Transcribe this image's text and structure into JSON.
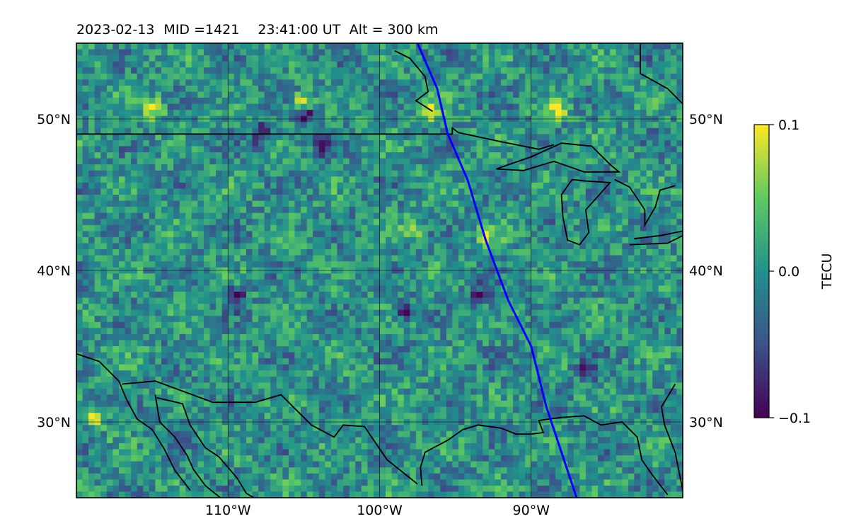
{
  "title": {
    "date": "2023-02-13",
    "mid": "MID =1421",
    "time": "23:41:00  UT",
    "alt": "Alt = 300 km"
  },
  "map": {
    "lon_range": [
      -120,
      -80
    ],
    "lat_range": [
      25,
      55
    ],
    "grid_lons": [
      -110,
      -100,
      -90
    ],
    "grid_lats": [
      30,
      40,
      50
    ],
    "lon_labels": [
      "110°W",
      "100°W",
      "90°W"
    ],
    "lat_labels": [
      "30°N",
      "40°N",
      "50°N"
    ],
    "colormap": "viridis",
    "track_color": "#0000ff",
    "track": [
      [
        -97.5,
        55
      ],
      [
        -96.2,
        52
      ],
      [
        -95.5,
        49
      ],
      [
        -94.2,
        46
      ],
      [
        -93,
        42
      ],
      [
        -91.5,
        38
      ],
      [
        -90,
        35
      ],
      [
        -89,
        31
      ],
      [
        -87,
        25
      ]
    ],
    "coastlines": {
      "canada_us_border": [
        [
          -120,
          49
        ],
        [
          -95.2,
          49
        ],
        [
          -95.2,
          49.4
        ],
        [
          -94.8,
          49.1
        ],
        [
          -92,
          48.5
        ],
        [
          -89.5,
          48
        ],
        [
          -88.5,
          48.3
        ]
      ],
      "lake_superior": [
        [
          -92.3,
          46.7
        ],
        [
          -90,
          47.5
        ],
        [
          -88,
          48.4
        ],
        [
          -86,
          48.2
        ],
        [
          -84.8,
          47
        ],
        [
          -84.2,
          46.5
        ],
        [
          -86.5,
          46.5
        ],
        [
          -88.5,
          47.2
        ],
        [
          -90.5,
          46.6
        ],
        [
          -92.3,
          46.7
        ]
      ],
      "lake_michigan": [
        [
          -87.3,
          46
        ],
        [
          -88,
          45
        ],
        [
          -87.9,
          43.5
        ],
        [
          -87.6,
          42
        ],
        [
          -86.8,
          41.7
        ],
        [
          -86.2,
          42.5
        ],
        [
          -86.4,
          44
        ],
        [
          -85.5,
          45
        ],
        [
          -84.8,
          45.8
        ],
        [
          -86.4,
          45.9
        ],
        [
          -87.3,
          46
        ]
      ],
      "lake_huron": [
        [
          -84.5,
          46
        ],
        [
          -83.5,
          45.5
        ],
        [
          -82.5,
          44
        ],
        [
          -82.5,
          43
        ],
        [
          -81.8,
          44.2
        ],
        [
          -81.5,
          45.3
        ],
        [
          -80.5,
          45.6
        ]
      ],
      "lake_erie": [
        [
          -83.5,
          41.7
        ],
        [
          -81,
          41.8
        ],
        [
          -79,
          42.8
        ],
        [
          -81.5,
          42.3
        ],
        [
          -83.2,
          42.1
        ]
      ],
      "gulf_coast": [
        [
          -97.2,
          25.8
        ],
        [
          -97.3,
          27
        ],
        [
          -97.0,
          28
        ],
        [
          -95.5,
          28.8
        ],
        [
          -94.5,
          29.5
        ],
        [
          -93.5,
          29.8
        ],
        [
          -92,
          29.6
        ],
        [
          -91,
          29.2
        ],
        [
          -90,
          29.2
        ],
        [
          -89.2,
          29.3
        ],
        [
          -89.5,
          30.1
        ],
        [
          -88,
          30.3
        ],
        [
          -86.5,
          30.4
        ],
        [
          -85.4,
          29.8
        ],
        [
          -84,
          30
        ],
        [
          -83,
          29
        ],
        [
          -82.7,
          27.5
        ],
        [
          -82,
          26.5
        ],
        [
          -81,
          25.2
        ]
      ],
      "atlantic_fl": [
        [
          -80,
          25.5
        ],
        [
          -80.5,
          28
        ],
        [
          -81.2,
          29.8
        ],
        [
          -81.4,
          31
        ],
        [
          -80.5,
          32.5
        ]
      ],
      "us_mexico_border": [
        [
          -117,
          32.5
        ],
        [
          -114.8,
          32.7
        ],
        [
          -111,
          31.3
        ],
        [
          -108.2,
          31.3
        ],
        [
          -106.5,
          31.8
        ],
        [
          -104.5,
          29.8
        ],
        [
          -103,
          29
        ],
        [
          -102.4,
          29.8
        ],
        [
          -101,
          29.7
        ],
        [
          -99.5,
          27.5
        ],
        [
          -97.5,
          25.9
        ]
      ],
      "baja_east": [
        [
          -114.8,
          31.8
        ],
        [
          -114.5,
          30
        ],
        [
          -113.5,
          29
        ],
        [
          -112.7,
          27.8
        ],
        [
          -112.3,
          26.9
        ],
        [
          -111.5,
          25.8
        ],
        [
          -110.5,
          25
        ]
      ],
      "mexico_mainland": [
        [
          -114.7,
          31.6
        ],
        [
          -113,
          31.2
        ],
        [
          -112.5,
          29.8
        ],
        [
          -111.5,
          28.3
        ],
        [
          -110.6,
          27.7
        ],
        [
          -109.4,
          26.3
        ],
        [
          -108.8,
          25.3
        ],
        [
          -108.3,
          25
        ]
      ],
      "pacific_coast": [
        [
          -120,
          34.5
        ],
        [
          -118.5,
          34
        ],
        [
          -117.2,
          32.7
        ],
        [
          -116.7,
          31.5
        ],
        [
          -116,
          30.2
        ],
        [
          -115,
          29.5
        ],
        [
          -114.2,
          28.2
        ],
        [
          -113.5,
          26.8
        ],
        [
          -112.5,
          25.5
        ]
      ],
      "hudson_bay": [
        [
          -82.8,
          55
        ],
        [
          -82.8,
          53
        ],
        [
          -81,
          52
        ],
        [
          -80,
          51
        ]
      ],
      "james_bay_inlet": [
        [
          -99,
          54.5
        ],
        [
          -98,
          54
        ],
        [
          -97,
          52.8
        ],
        [
          -96.8,
          51.8
        ],
        [
          -97.6,
          51.2
        ],
        [
          -96.5,
          50.5
        ]
      ]
    }
  },
  "chart_data": {
    "type": "heatmap",
    "title": "2023-02-13  MID =1421    23:41:00  UT  Alt = 300 km",
    "x_ticks": [
      "110°W",
      "100°W",
      "90°W"
    ],
    "y_ticks": [
      "30°N",
      "40°N",
      "50°N"
    ],
    "xlim": [
      -120,
      -80
    ],
    "ylim": [
      25,
      55
    ],
    "colorbar": {
      "label": "TECU",
      "min": -0.1,
      "max": 0.1,
      "tick_labels": [
        "0.1",
        "0.0",
        "−0.1"
      ],
      "tick_values": [
        0.1,
        0.0,
        -0.1
      ]
    },
    "grid": true,
    "highlights": [
      {
        "lon": -115,
        "lat": 50.8,
        "value": 0.09
      },
      {
        "lon": -105.3,
        "lat": 51.2,
        "value": 0.1
      },
      {
        "lon": -97,
        "lat": 50.8,
        "value": 0.09
      },
      {
        "lon": -88.5,
        "lat": 50.8,
        "value": 0.08
      },
      {
        "lon": -119,
        "lat": 30.4,
        "value": 0.08
      },
      {
        "lon": -108,
        "lat": 49.2,
        "value": -0.1
      },
      {
        "lon": -105,
        "lat": 50.5,
        "value": -0.09
      },
      {
        "lon": -104,
        "lat": 48.5,
        "value": -0.08
      },
      {
        "lon": -109.7,
        "lat": 38.5,
        "value": -0.09
      },
      {
        "lon": -93.5,
        "lat": 38.5,
        "value": -0.09
      },
      {
        "lon": -98.5,
        "lat": 37.5,
        "value": -0.08
      },
      {
        "lon": -86.5,
        "lat": 33.5,
        "value": -0.08
      },
      {
        "lon": -93,
        "lat": 42.5,
        "value": 0.07
      },
      {
        "lon": -98,
        "lat": 43,
        "value": 0.07
      }
    ]
  }
}
